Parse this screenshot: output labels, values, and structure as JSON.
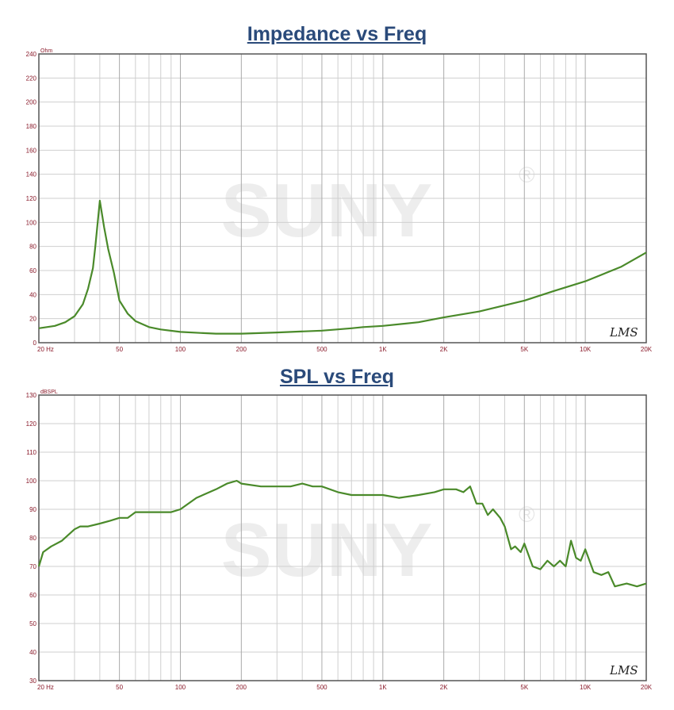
{
  "watermark": {
    "text": "SUNY",
    "mark": "®"
  },
  "chart_data": [
    {
      "type": "line",
      "title": "Impedance vs Freq",
      "unit_label": "Ohm",
      "brand": "LMS",
      "xscale": "log",
      "xlim": [
        20,
        20000
      ],
      "ylim": [
        0,
        240
      ],
      "yticks": [
        0,
        20,
        40,
        60,
        80,
        100,
        120,
        140,
        160,
        180,
        200,
        220,
        240
      ],
      "xtick_labels": [
        {
          "value": 20,
          "label": "20  Hz"
        },
        {
          "value": 50,
          "label": "50"
        },
        {
          "value": 100,
          "label": "100"
        },
        {
          "value": 200,
          "label": "200"
        },
        {
          "value": 500,
          "label": "500"
        },
        {
          "value": 1000,
          "label": "1K"
        },
        {
          "value": 2000,
          "label": "2K"
        },
        {
          "value": 5000,
          "label": "5K"
        },
        {
          "value": 10000,
          "label": "10K"
        },
        {
          "value": 20000,
          "label": "20K"
        }
      ],
      "grid": true,
      "color": "#4a8a2a",
      "series": [
        {
          "x": [
            20,
            24,
            27,
            30,
            33,
            35,
            37,
            38,
            40,
            42,
            44,
            47,
            50,
            55,
            60,
            70,
            80,
            100,
            130,
            150,
            200,
            300,
            500,
            700,
            800,
            1000,
            1500,
            2000,
            3000,
            5000,
            7000,
            10000,
            15000,
            20000
          ],
          "y": [
            12,
            14,
            17,
            22,
            32,
            45,
            62,
            80,
            118,
            96,
            78,
            58,
            35,
            24,
            18,
            13,
            11,
            9,
            8,
            7.5,
            7.5,
            8.5,
            10,
            12,
            13,
            14,
            17,
            21,
            26,
            35,
            43,
            51,
            63,
            75
          ]
        }
      ]
    },
    {
      "type": "line",
      "title": "SPL vs Freq",
      "unit_label": "dBSPL",
      "brand": "LMS",
      "xscale": "log",
      "xlim": [
        20,
        20000
      ],
      "ylim": [
        30,
        130
      ],
      "yticks": [
        30,
        40,
        50,
        60,
        70,
        80,
        90,
        100,
        110,
        120,
        130
      ],
      "xtick_labels": [
        {
          "value": 20,
          "label": "20  Hz"
        },
        {
          "value": 50,
          "label": "50"
        },
        {
          "value": 100,
          "label": "100"
        },
        {
          "value": 200,
          "label": "200"
        },
        {
          "value": 500,
          "label": "500"
        },
        {
          "value": 1000,
          "label": "1K"
        },
        {
          "value": 2000,
          "label": "2K"
        },
        {
          "value": 5000,
          "label": "5K"
        },
        {
          "value": 10000,
          "label": "10K"
        },
        {
          "value": 20000,
          "label": "20K"
        }
      ],
      "grid": true,
      "color": "#4a8a2a",
      "series": [
        {
          "x": [
            20,
            21,
            23,
            26,
            30,
            32,
            35,
            40,
            45,
            50,
            55,
            60,
            70,
            80,
            90,
            100,
            120,
            150,
            170,
            190,
            200,
            250,
            300,
            350,
            400,
            450,
            500,
            600,
            700,
            800,
            1000,
            1200,
            1500,
            1800,
            2000,
            2300,
            2500,
            2700,
            2900,
            3100,
            3300,
            3500,
            3800,
            4000,
            4300,
            4500,
            4800,
            5000,
            5500,
            6000,
            6500,
            7000,
            7500,
            8000,
            8500,
            9000,
            9500,
            10000,
            11000,
            12000,
            13000,
            14000,
            16000,
            18000,
            20000
          ],
          "y": [
            70,
            75,
            77,
            79,
            83,
            84,
            84,
            85,
            86,
            87,
            87,
            89,
            89,
            89,
            89,
            90,
            94,
            97,
            99,
            100,
            99,
            98,
            98,
            98,
            99,
            98,
            98,
            96,
            95,
            95,
            95,
            94,
            95,
            96,
            97,
            97,
            96,
            98,
            92,
            92,
            88,
            90,
            87,
            84,
            76,
            77,
            75,
            78,
            70,
            69,
            72,
            70,
            72,
            70,
            79,
            73,
            72,
            76,
            68,
            67,
            68,
            63,
            64,
            63,
            64
          ]
        }
      ]
    }
  ]
}
